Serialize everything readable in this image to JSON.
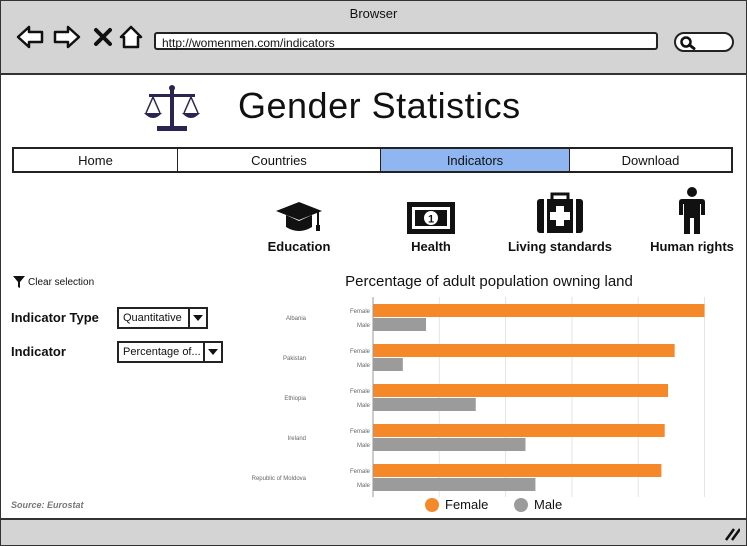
{
  "browser": {
    "title": "Browser",
    "url": "http://womenmen.com/indicators"
  },
  "site": {
    "title": "Gender Statistics",
    "logo_icon": "scales-icon"
  },
  "menu": {
    "tabs": [
      {
        "label": "Home",
        "active": false
      },
      {
        "label": "Countries",
        "active": false
      },
      {
        "label": "Indicators",
        "active": true
      },
      {
        "label": "Download",
        "active": false
      }
    ],
    "active_color": "#8fb6f0"
  },
  "categories": [
    {
      "label": "Education",
      "icon": "graduation-cap-icon"
    },
    {
      "label": "Health",
      "icon": "money-note-icon"
    },
    {
      "label": "Living standards",
      "icon": "medical-kit-icon"
    },
    {
      "label": "Human rights",
      "icon": "person-icon"
    }
  ],
  "filters": {
    "clear_label": "Clear selection",
    "indicator_type_label": "Indicator Type",
    "indicator_type_value": "Quantitative",
    "indicator_label": "Indicator",
    "indicator_value": "Percentage of..."
  },
  "source": "Source: Eurostat",
  "chart_data": {
    "type": "bar",
    "orientation": "horizontal",
    "title": "Percentage of adult population owning land",
    "categories": [
      "Albania",
      "Pakistan",
      "Ethiopia",
      "Ireland",
      "Republic of Moldova"
    ],
    "series": [
      {
        "name": "Female",
        "color": "#f5892a",
        "values": [
          100,
          91,
          89,
          88,
          87
        ]
      },
      {
        "name": "Male",
        "color": "#9b9b9b",
        "values": [
          16,
          9,
          31,
          46,
          49
        ]
      }
    ],
    "xlim": [
      0,
      108
    ],
    "grid": true,
    "legend": "bottom"
  }
}
